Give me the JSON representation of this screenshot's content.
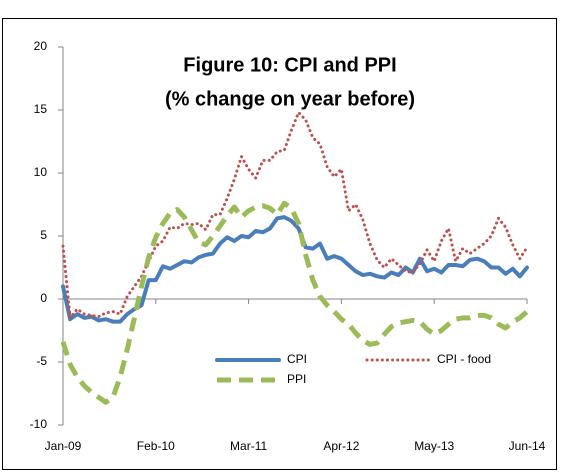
{
  "chart_data": {
    "type": "line",
    "title": "Figure 10: CPI and PPI",
    "subtitle": "(% change on year before)",
    "categories": [
      "Jan-09",
      null,
      null,
      null,
      null,
      null,
      null,
      null,
      null,
      null,
      null,
      null,
      null,
      "Feb-10",
      null,
      null,
      null,
      null,
      null,
      null,
      null,
      null,
      null,
      null,
      null,
      null,
      "Mar-11",
      null,
      null,
      null,
      null,
      null,
      null,
      null,
      null,
      null,
      null,
      null,
      null,
      "Apr-12",
      null,
      null,
      null,
      null,
      null,
      null,
      null,
      null,
      null,
      null,
      null,
      null,
      "May-13",
      null,
      null,
      null,
      null,
      null,
      null,
      null,
      null,
      null,
      null,
      null,
      null,
      "Jun-14"
    ],
    "series": [
      {
        "name": "CPI",
        "color": "#4a7ebb",
        "style": "solid",
        "values": [
          1.0,
          -1.6,
          -1.2,
          -1.5,
          -1.4,
          -1.7,
          -1.6,
          -1.8,
          -1.8,
          -1.2,
          -0.8,
          -0.5,
          1.5,
          1.5,
          2.6,
          2.4,
          2.7,
          3.0,
          2.9,
          3.3,
          3.5,
          3.6,
          4.4,
          4.9,
          4.6,
          5.0,
          4.9,
          5.4,
          5.3,
          5.6,
          6.4,
          6.5,
          6.2,
          5.6,
          4.1,
          4.0,
          4.4,
          3.2,
          3.4,
          3.2,
          2.7,
          2.2,
          1.9,
          2.0,
          1.8,
          1.7,
          2.1,
          1.9,
          2.5,
          2.1,
          3.2,
          2.2,
          2.4,
          2.1,
          2.7,
          2.7,
          2.6,
          3.1,
          3.2,
          3.0,
          2.5,
          2.5,
          2.0,
          2.4,
          1.8,
          2.5
        ]
      },
      {
        "name": "CPI - food",
        "color": "#c0504d",
        "style": "dotted",
        "values": [
          4.2,
          -1.5,
          -0.8,
          -1.2,
          -1.3,
          -1.4,
          -1.1,
          -1.0,
          -1.2,
          0.2,
          1.0,
          1.8,
          3.0,
          4.2,
          4.6,
          5.7,
          5.6,
          6.0,
          5.9,
          6.0,
          5.5,
          6.7,
          6.7,
          8.0,
          9.5,
          11.3,
          10.3,
          9.6,
          11.0,
          11.0,
          11.7,
          11.8,
          13.4,
          14.8,
          14.2,
          12.8,
          12.3,
          10.5,
          9.7,
          10.3,
          7.0,
          7.5,
          6.3,
          4.4,
          3.1,
          2.5,
          3.2,
          2.7,
          2.2,
          2.1,
          2.8,
          3.9,
          3.0,
          4.6,
          5.6,
          3.0,
          4.0,
          3.6,
          4.0,
          4.4,
          5.0,
          6.4,
          5.7,
          4.3,
          3.2,
          4.1
        ]
      },
      {
        "name": "PPI",
        "color": "#9bbb59",
        "style": "dashed",
        "values": [
          -3.4,
          -5.2,
          -6.2,
          -6.9,
          -7.4,
          -7.8,
          -8.2,
          -7.8,
          -6.2,
          -4.0,
          -1.5,
          1.0,
          3.3,
          4.9,
          6.0,
          6.8,
          7.1,
          6.5,
          5.5,
          4.5,
          4.3,
          5.0,
          5.8,
          6.6,
          7.3,
          6.5,
          7.0,
          7.3,
          7.4,
          7.2,
          6.7,
          7.6,
          7.2,
          6.0,
          3.5,
          1.5,
          0.2,
          -0.5,
          -1.0,
          -1.6,
          -2.0,
          -2.7,
          -3.3,
          -3.6,
          -3.5,
          -2.8,
          -2.2,
          -1.9,
          -1.8,
          -1.7,
          -1.8,
          -2.4,
          -2.8,
          -2.5,
          -2.0,
          -1.6,
          -1.5,
          -1.5,
          -1.3,
          -1.3,
          -1.5,
          -2.0,
          -2.3,
          -1.8,
          -1.5,
          -1.0
        ]
      }
    ],
    "ylim": [
      -10,
      20
    ],
    "yticks": [
      -10,
      -5,
      0,
      5,
      10,
      15,
      20
    ],
    "grid": false,
    "legend": "lower center"
  }
}
